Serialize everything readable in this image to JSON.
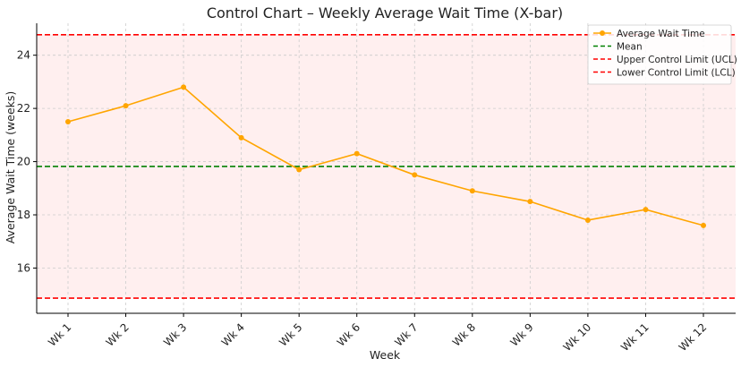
{
  "chart_data": {
    "type": "line",
    "title": "Control Chart – Weekly Average Wait Time (X-bar)",
    "xlabel": "Week",
    "ylabel": "Average Wait Time (weeks)",
    "categories": [
      "Wk 1",
      "Wk 2",
      "Wk 3",
      "Wk 4",
      "Wk 5",
      "Wk 6",
      "Wk 7",
      "Wk 8",
      "Wk 9",
      "Wk 10",
      "Wk 11",
      "Wk 12"
    ],
    "series": [
      {
        "name": "Average Wait Time",
        "color": "#FFA500",
        "values": [
          21.5,
          22.1,
          22.8,
          20.9,
          19.7,
          20.3,
          19.5,
          18.9,
          18.5,
          17.8,
          18.2,
          17.6
        ]
      }
    ],
    "reference_lines": [
      {
        "name": "Mean",
        "value": 19.82,
        "color": "#008000",
        "style": "dashed"
      },
      {
        "name": "Upper Control Limit (UCL)",
        "value": 24.77,
        "color": "#FF0000",
        "style": "dashed"
      },
      {
        "name": "Lower Control Limit (LCL)",
        "value": 14.87,
        "color": "#FF0000",
        "style": "dashed"
      }
    ],
    "shaded_band": {
      "from": 14.87,
      "to": 24.77,
      "color": "#FFE5E5"
    },
    "ylim": [
      14.3,
      25.2
    ],
    "yticks": [
      16,
      18,
      20,
      22,
      24
    ],
    "grid": true,
    "legend_position": "top-right"
  }
}
